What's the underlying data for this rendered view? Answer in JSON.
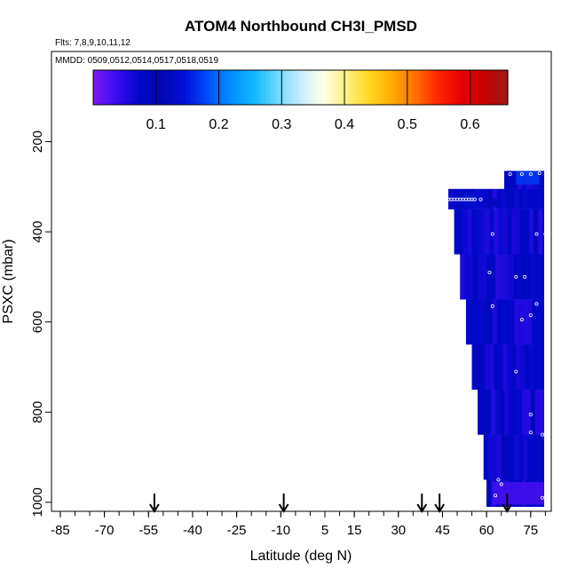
{
  "chart_data": {
    "type": "heatmap",
    "title": "ATOM4 Northbound CH3I_PMSD",
    "flights_label": "Flts: 7,8,9,10,11,12",
    "dates_label": "MMDD: 0509,0512,0514,0517,0518,0519",
    "xlabel": "Latitude (deg N)",
    "ylabel": "PSXC (mbar)",
    "xlim": [
      -88,
      82
    ],
    "ylim": [
      1020,
      0
    ],
    "x_ticks": [
      "-85",
      "-70",
      "-55",
      "-40",
      "-25",
      "-10",
      "5",
      "15",
      "30",
      "45",
      "60",
      "75"
    ],
    "x_tick_values": [
      -85,
      -70,
      -55,
      -40,
      -25,
      -10,
      5,
      15,
      30,
      45,
      60,
      75
    ],
    "y_ticks": [
      "200",
      "400",
      "600",
      "800",
      "1000"
    ],
    "y_tick_values": [
      200,
      400,
      600,
      800,
      1000
    ],
    "colorbar": {
      "min": 0,
      "max": 0.66,
      "ticks": [
        "0.1",
        "0.2",
        "0.3",
        "0.4",
        "0.5",
        "0.6"
      ],
      "tick_values": [
        0.1,
        0.2,
        0.3,
        0.4,
        0.5,
        0.6
      ],
      "colors": [
        "#7a1cf0",
        "#3a0cf0",
        "#0008c8",
        "#0008b0",
        "#0010d8",
        "#0050ff",
        "#0090ff",
        "#10b8ff",
        "#70d8ff",
        "#c8ecff",
        "#ffffe8",
        "#fff080",
        "#ffd820",
        "#ffaa00",
        "#ff7000",
        "#ff2400",
        "#e80000",
        "#c40000",
        "#a01818"
      ]
    },
    "arrows_latitude": [
      -53,
      -9,
      38,
      44,
      67
    ],
    "region_lat_max": 79.5,
    "region_rows": [
      {
        "p_top": 265,
        "p_bot": 305,
        "lat_min": 66
      },
      {
        "p_top": 305,
        "p_bot": 350,
        "lat_min": 47
      },
      {
        "p_top": 350,
        "p_bot": 450,
        "lat_min": 49
      },
      {
        "p_top": 450,
        "p_bot": 550,
        "lat_min": 51
      },
      {
        "p_top": 550,
        "p_bot": 650,
        "lat_min": 53
      },
      {
        "p_top": 650,
        "p_bot": 750,
        "lat_min": 55
      },
      {
        "p_top": 750,
        "p_bot": 850,
        "lat_min": 57
      },
      {
        "p_top": 850,
        "p_bot": 950,
        "lat_min": 59
      },
      {
        "p_top": 950,
        "p_bot": 1010,
        "lat_min": 60
      }
    ],
    "highlight_patches": [
      {
        "lat": [
          70,
          78
        ],
        "p": [
          265,
          295
        ],
        "value": 0.17
      },
      {
        "lat": [
          52,
          58
        ],
        "p": [
          315,
          345
        ],
        "value": 0.14
      },
      {
        "lat": [
          60,
          64
        ],
        "p": [
          325,
          345
        ],
        "value": 0.12
      },
      {
        "lat": [
          62,
          79.5
        ],
        "p": [
          955,
          1005
        ],
        "value": 0.03
      }
    ],
    "base_value": 0.07,
    "sample_points": [
      {
        "lat": 68,
        "p": 272
      },
      {
        "lat": 72,
        "p": 272
      },
      {
        "lat": 75,
        "p": 272
      },
      {
        "lat": 78,
        "p": 270
      },
      {
        "lat": 47,
        "p": 328
      },
      {
        "lat": 48,
        "p": 328
      },
      {
        "lat": 49,
        "p": 328
      },
      {
        "lat": 50,
        "p": 328
      },
      {
        "lat": 51,
        "p": 328
      },
      {
        "lat": 52,
        "p": 328
      },
      {
        "lat": 53,
        "p": 328
      },
      {
        "lat": 54,
        "p": 328
      },
      {
        "lat": 55,
        "p": 328
      },
      {
        "lat": 56,
        "p": 328
      },
      {
        "lat": 58,
        "p": 328
      },
      {
        "lat": 62,
        "p": 405
      },
      {
        "lat": 77,
        "p": 405
      },
      {
        "lat": 80,
        "p": 405
      },
      {
        "lat": 61,
        "p": 490
      },
      {
        "lat": 70,
        "p": 500
      },
      {
        "lat": 73,
        "p": 500
      },
      {
        "lat": 62,
        "p": 565
      },
      {
        "lat": 72,
        "p": 595
      },
      {
        "lat": 75,
        "p": 585
      },
      {
        "lat": 77,
        "p": 560
      },
      {
        "lat": 70,
        "p": 710
      },
      {
        "lat": 75,
        "p": 805
      },
      {
        "lat": 75,
        "p": 845
      },
      {
        "lat": 79,
        "p": 850
      },
      {
        "lat": 64,
        "p": 950
      },
      {
        "lat": 65,
        "p": 960
      },
      {
        "lat": 63,
        "p": 985
      },
      {
        "lat": 79,
        "p": 990
      }
    ]
  }
}
